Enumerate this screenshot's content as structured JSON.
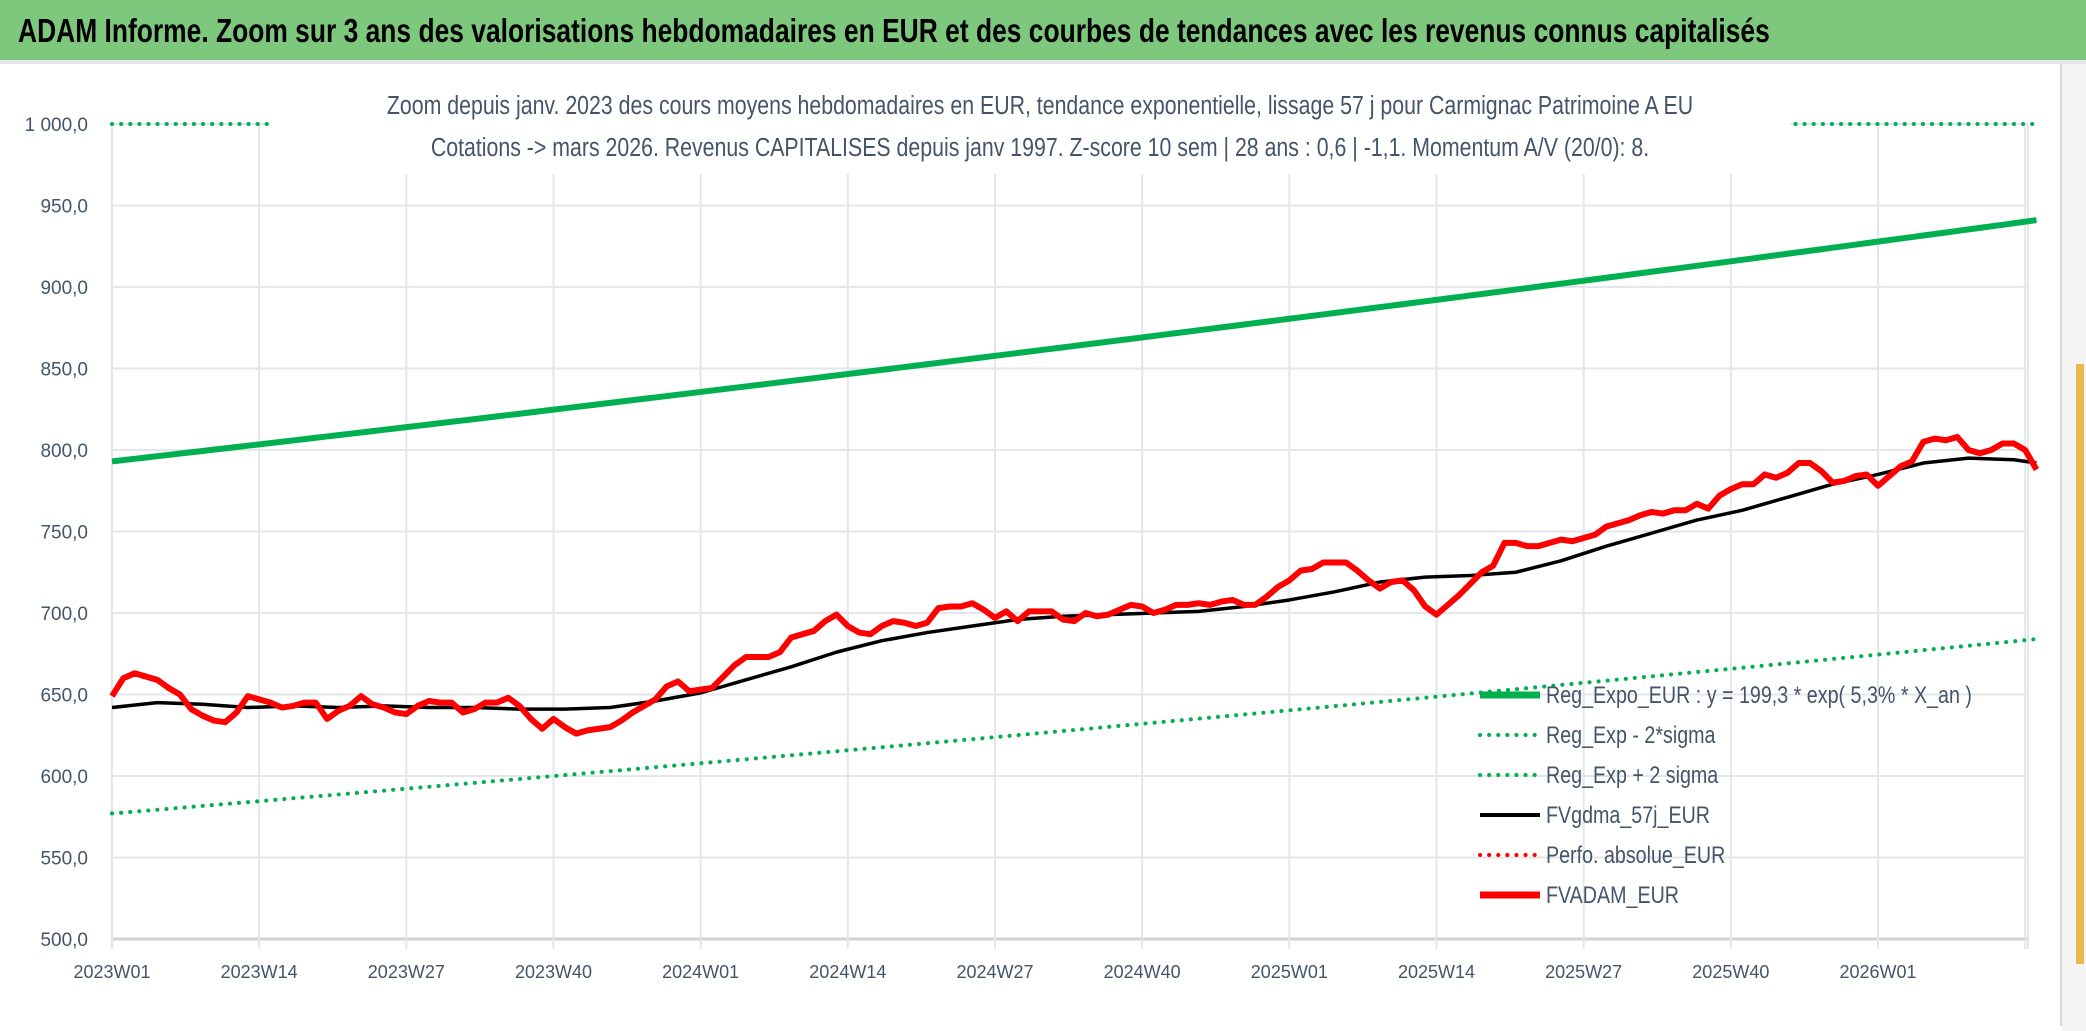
{
  "window_title": "ADAM Informe. Zoom sur 3 ans des valorisations hebdomadaires en EUR et des courbes de tendances avec les revenus connus capitalisés",
  "chart_data": {
    "type": "line",
    "title": [
      "Zoom depuis janv. 2023 des cours moyens hebdomadaires en EUR, tendance exponentielle, lissage 57 j pour Carmignac Patrimoine A EU",
      "Cotations -> mars 2026. Revenus CAPITALISES depuis janv 1997. Z-score 10 sem | 28 ans : 0,6 | -1,1. Momentum A/V (20/0): 8."
    ],
    "ylim": [
      500,
      1000
    ],
    "y_ticks": [
      "1 000,0",
      "950,0",
      "900,0",
      "850,0",
      "800,0",
      "750,0",
      "700,0",
      "650,0",
      "600,0",
      "550,0",
      "500,0"
    ],
    "y_tick_values": [
      1000,
      950,
      900,
      850,
      800,
      750,
      700,
      650,
      600,
      550,
      500
    ],
    "x_ticks": [
      "2023W01",
      "2023W14",
      "2023W27",
      "2023W40",
      "2024W01",
      "2024W14",
      "2024W27",
      "2024W40",
      "2025W01",
      "2025W14",
      "2025W27",
      "2025W40",
      "2026W01"
    ],
    "weeks_between_ticks": 13,
    "n_weeks": 170,
    "legend_position": "bottom-right",
    "grid": true,
    "series": [
      {
        "name": "Reg_Expo_EUR : y = 199,3 * exp( 5,3% *  X_an )",
        "color": "#00b050",
        "style": "solid-thick",
        "start": 793,
        "end": 941
      },
      {
        "name": "Reg_Exp - 2*sigma",
        "color": "#00b050",
        "style": "dotted",
        "start": 577,
        "end": 684
      },
      {
        "name": "Reg_Exp + 2 sigma",
        "color": "#00b050",
        "style": "dotted",
        "start": 1000,
        "end": 1000
      },
      {
        "name": "FVgdma_57j_EUR",
        "color": "#000000",
        "style": "solid",
        "points": [
          [
            0,
            642
          ],
          [
            4,
            645
          ],
          [
            8,
            644
          ],
          [
            12,
            642
          ],
          [
            16,
            643
          ],
          [
            20,
            642
          ],
          [
            24,
            643
          ],
          [
            28,
            642
          ],
          [
            32,
            642
          ],
          [
            36,
            641
          ],
          [
            40,
            641
          ],
          [
            44,
            642
          ],
          [
            48,
            646
          ],
          [
            52,
            651
          ],
          [
            56,
            659
          ],
          [
            60,
            667
          ],
          [
            64,
            676
          ],
          [
            68,
            683
          ],
          [
            72,
            688
          ],
          [
            76,
            692
          ],
          [
            80,
            696
          ],
          [
            84,
            698
          ],
          [
            88,
            699
          ],
          [
            92,
            700
          ],
          [
            96,
            701
          ],
          [
            100,
            704
          ],
          [
            104,
            708
          ],
          [
            108,
            713
          ],
          [
            112,
            719
          ],
          [
            116,
            722
          ],
          [
            120,
            723
          ],
          [
            124,
            725
          ],
          [
            128,
            732
          ],
          [
            132,
            741
          ],
          [
            136,
            749
          ],
          [
            140,
            757
          ],
          [
            144,
            763
          ],
          [
            148,
            771
          ],
          [
            152,
            779
          ],
          [
            156,
            785
          ],
          [
            160,
            792
          ],
          [
            164,
            795
          ],
          [
            168,
            794
          ],
          [
            170,
            792
          ]
        ]
      },
      {
        "name": "Perfo. absolue_EUR",
        "color": "#ff0000",
        "style": "dotted",
        "points": []
      },
      {
        "name": "FVADAM_EUR",
        "color": "#ff0000",
        "style": "solid-thick",
        "values": [
          649,
          660,
          663,
          661,
          659,
          654,
          650,
          641,
          637,
          634,
          633,
          639,
          649,
          647,
          645,
          642,
          643,
          645,
          645,
          635,
          640,
          643,
          649,
          644,
          642,
          639,
          638,
          643,
          646,
          645,
          645,
          639,
          641,
          645,
          645,
          648,
          643,
          635,
          629,
          635,
          630,
          626,
          628,
          629,
          630,
          634,
          639,
          643,
          647,
          655,
          658,
          652,
          653,
          654,
          661,
          668,
          673,
          673,
          673,
          676,
          685,
          687,
          689,
          695,
          699,
          692,
          688,
          687,
          692,
          695,
          694,
          692,
          694,
          703,
          704,
          704,
          706,
          702,
          697,
          701,
          695,
          701,
          701,
          701,
          696,
          695,
          700,
          698,
          699,
          702,
          705,
          704,
          700,
          702,
          705,
          705,
          706,
          705,
          707,
          708,
          705,
          705,
          710,
          716,
          720,
          726,
          727,
          731,
          731,
          731,
          726,
          720,
          715,
          719,
          720,
          714,
          704,
          699,
          705,
          711,
          718,
          725,
          729,
          743,
          743,
          741,
          741,
          743,
          745,
          744,
          746,
          748,
          753,
          755,
          757,
          760,
          762,
          761,
          763,
          763,
          767,
          764,
          772,
          776,
          779,
          779,
          785,
          783,
          786,
          792,
          792,
          787,
          780,
          781,
          784,
          785,
          778,
          784,
          790,
          793,
          805,
          807,
          806,
          808,
          800,
          798,
          800,
          804,
          804,
          800,
          788
        ]
      }
    ]
  }
}
